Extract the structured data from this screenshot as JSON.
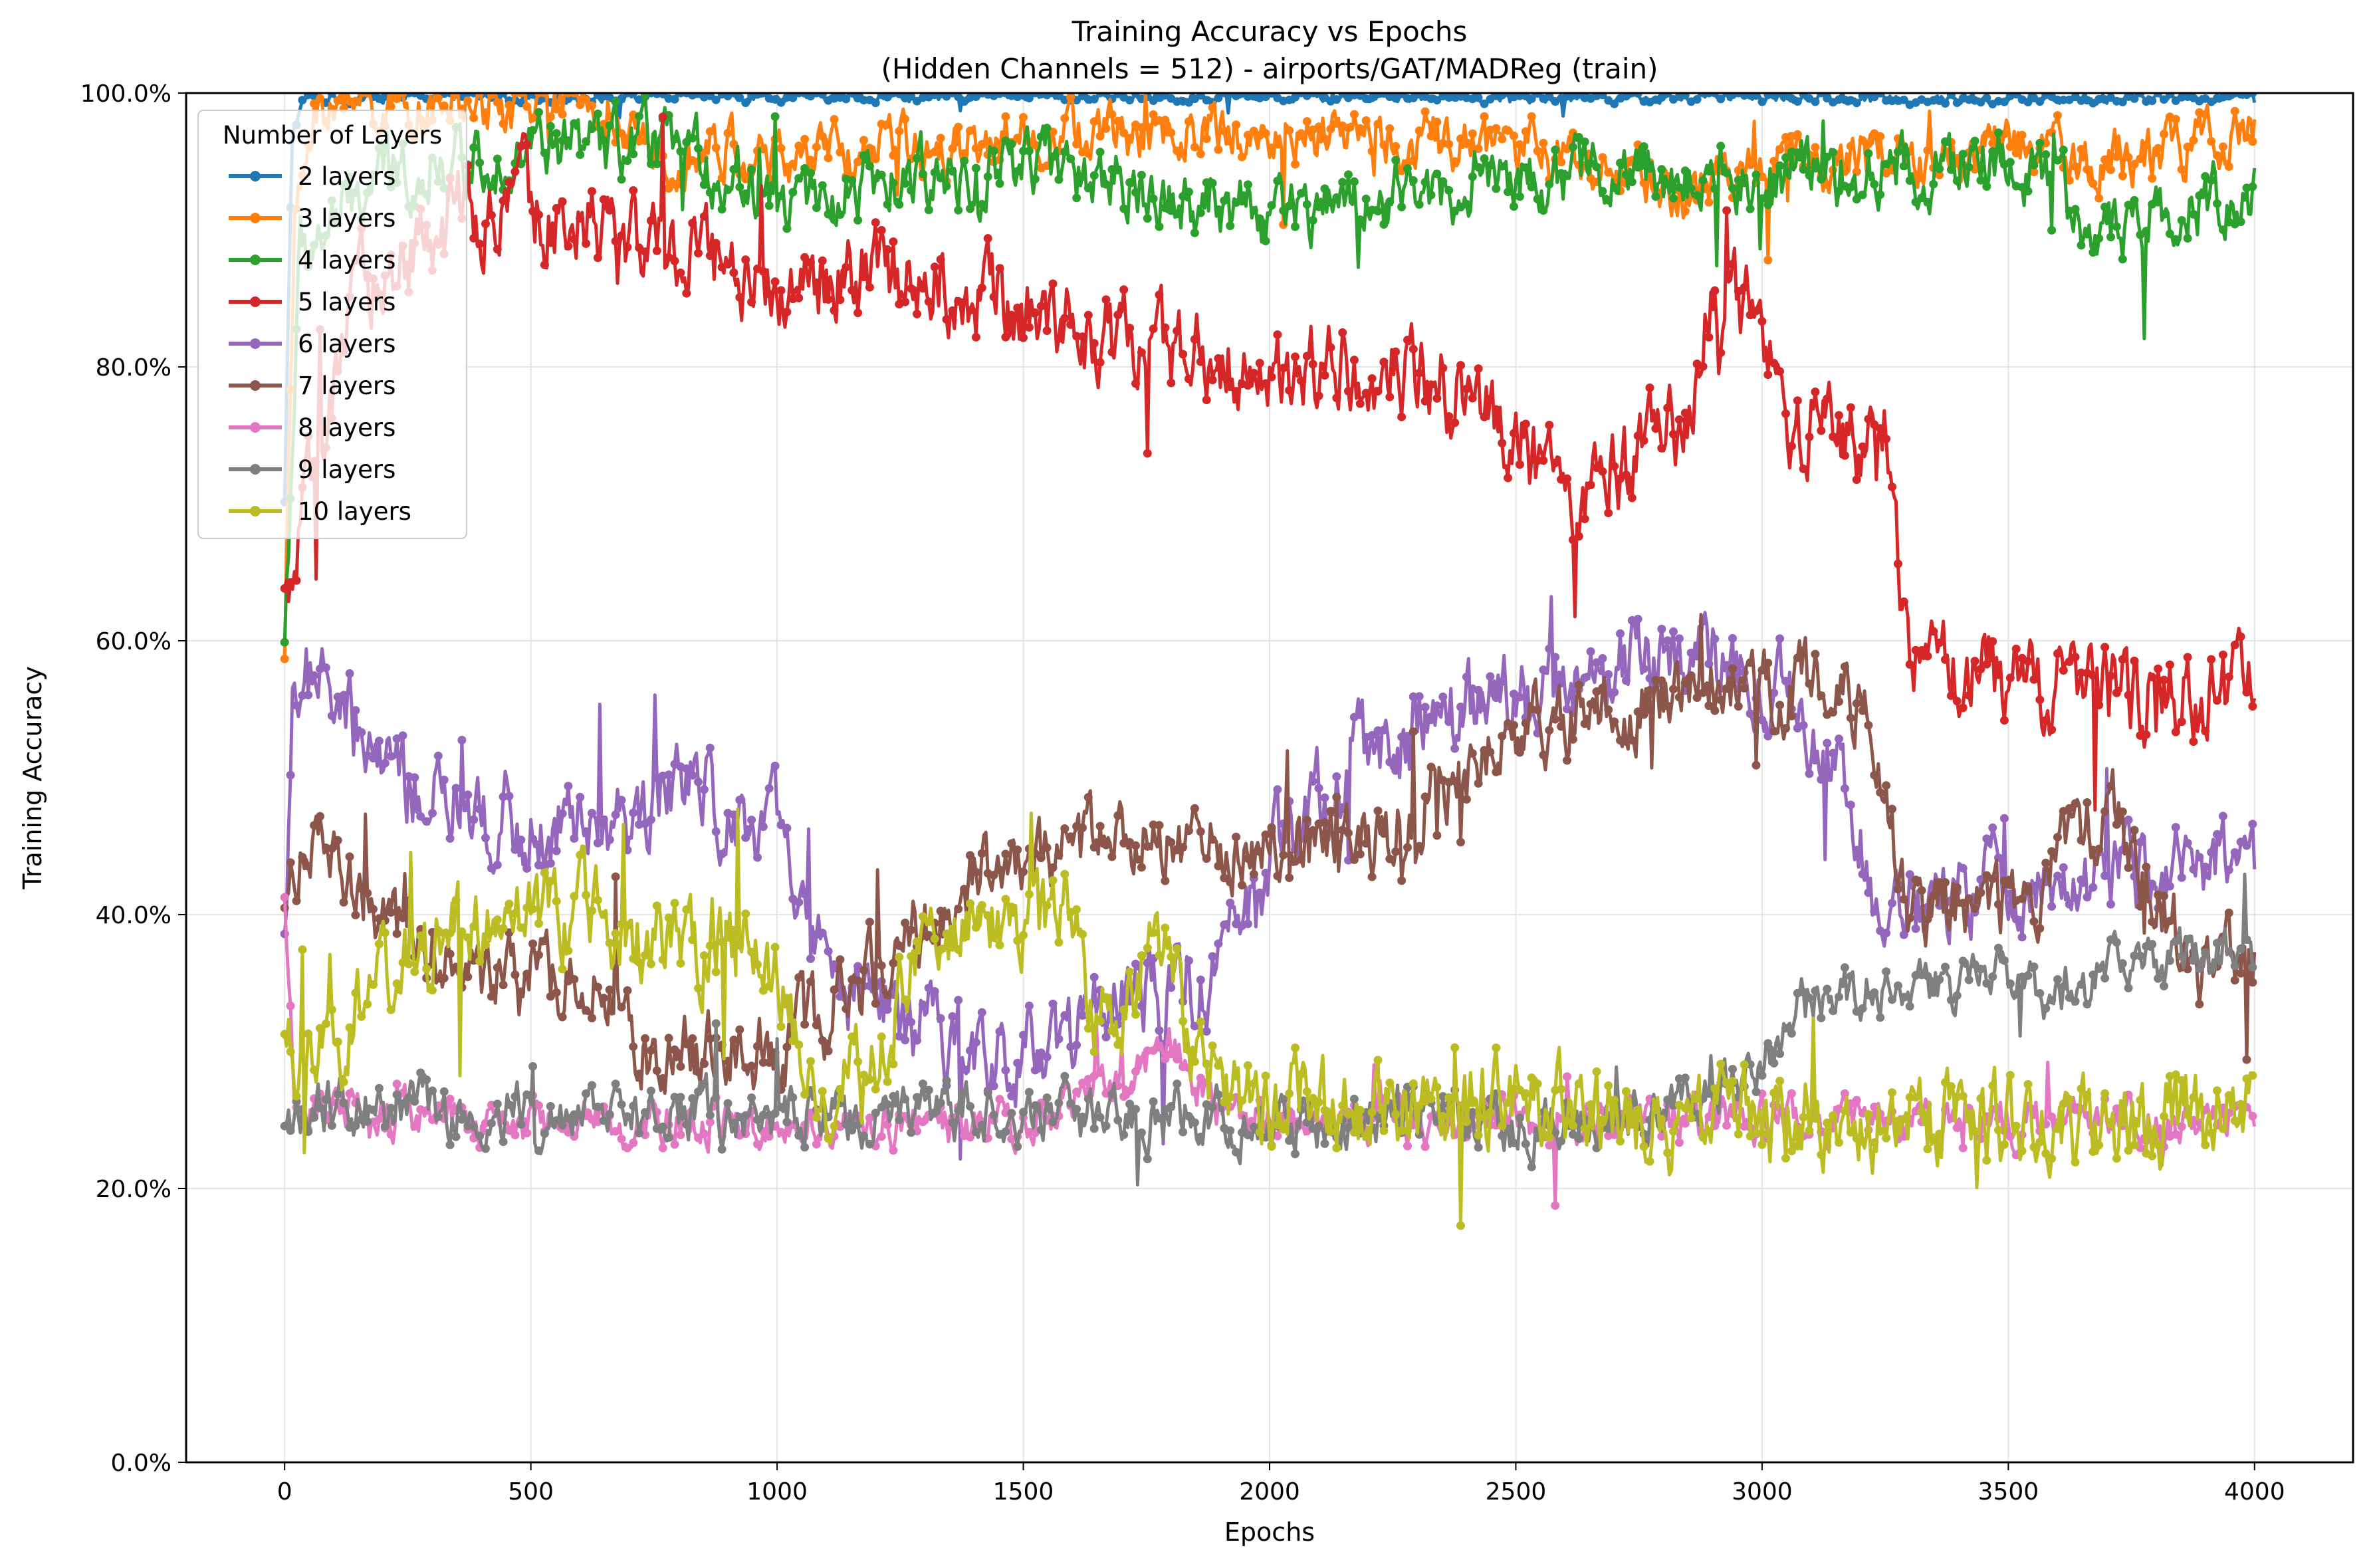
{
  "chart_data": {
    "type": "line",
    "title": "Training Accuracy vs Epochs",
    "subtitle": "(Hidden Channels = 512) - airports/GAT/MADReg (train)",
    "xlabel": "Epochs",
    "ylabel": "Training Accuracy",
    "xlim": [
      -200,
      4200
    ],
    "ylim": [
      0,
      100
    ],
    "x_ticks": [
      0,
      500,
      1000,
      1500,
      2000,
      2500,
      3000,
      3500,
      4000
    ],
    "x_tick_labels": [
      "0",
      "500",
      "1000",
      "1500",
      "2000",
      "2500",
      "3000",
      "3500",
      "4000"
    ],
    "y_ticks": [
      0,
      20,
      40,
      60,
      80,
      100
    ],
    "y_tick_labels": [
      "0.0%",
      "20.0%",
      "40.0%",
      "60.0%",
      "80.0%",
      "100.0%"
    ],
    "grid": true,
    "legend": {
      "title": "Number of Layers",
      "placement": "top-left"
    },
    "series": [
      {
        "name": "2 layers",
        "color": "#1f77b4",
        "noise": 0.5,
        "points": [
          [
            0,
            70
          ],
          [
            15,
            97
          ],
          [
            40,
            99.6
          ],
          [
            200,
            99.8
          ],
          [
            1000,
            99.7
          ],
          [
            2000,
            99.8
          ],
          [
            3000,
            99.7
          ],
          [
            3400,
            99.5
          ],
          [
            4000,
            99.7
          ]
        ]
      },
      {
        "name": "3 layers",
        "color": "#ff7f0e",
        "noise": 2.5,
        "points": [
          [
            0,
            60
          ],
          [
            20,
            90
          ],
          [
            60,
            99
          ],
          [
            400,
            99
          ],
          [
            660,
            99
          ],
          [
            700,
            96
          ],
          [
            900,
            96
          ],
          [
            1000,
            95
          ],
          [
            1500,
            97
          ],
          [
            2000,
            97
          ],
          [
            2500,
            96
          ],
          [
            2750,
            94
          ],
          [
            2850,
            92
          ],
          [
            3000,
            95
          ],
          [
            3500,
            96
          ],
          [
            3700,
            95
          ],
          [
            4000,
            97
          ]
        ]
      },
      {
        "name": "4 layers",
        "color": "#2ca02c",
        "noise": 3,
        "points": [
          [
            0,
            60
          ],
          [
            30,
            88
          ],
          [
            200,
            94
          ],
          [
            500,
            96
          ],
          [
            800,
            96
          ],
          [
            1000,
            92
          ],
          [
            1500,
            95
          ],
          [
            2000,
            91
          ],
          [
            2500,
            94
          ],
          [
            3000,
            94
          ],
          [
            3500,
            95
          ],
          [
            3700,
            90
          ],
          [
            4000,
            93
          ]
        ]
      },
      {
        "name": "5 layers",
        "color": "#d62728",
        "noise": 4,
        "points": [
          [
            0,
            62
          ],
          [
            50,
            70
          ],
          [
            150,
            85
          ],
          [
            300,
            90
          ],
          [
            500,
            92
          ],
          [
            700,
            90
          ],
          [
            900,
            87
          ],
          [
            1000,
            86
          ],
          [
            1300,
            87
          ],
          [
            1500,
            84
          ],
          [
            1700,
            82
          ],
          [
            2000,
            80
          ],
          [
            2300,
            80
          ],
          [
            2500,
            76
          ],
          [
            2600,
            69
          ],
          [
            2700,
            72
          ],
          [
            2850,
            76
          ],
          [
            2900,
            85
          ],
          [
            3000,
            83
          ],
          [
            3050,
            77
          ],
          [
            3150,
            74
          ],
          [
            3250,
            75
          ],
          [
            3300,
            58
          ],
          [
            3500,
            57
          ],
          [
            3700,
            56
          ],
          [
            4000,
            56
          ]
        ]
      },
      {
        "name": "6 layers",
        "color": "#9467bd",
        "noise": 4,
        "points": [
          [
            0,
            40
          ],
          [
            20,
            58
          ],
          [
            100,
            55
          ],
          [
            250,
            49
          ],
          [
            400,
            47
          ],
          [
            700,
            47
          ],
          [
            800,
            50
          ],
          [
            1000,
            46
          ],
          [
            1100,
            35
          ],
          [
            1300,
            32
          ],
          [
            1500,
            30
          ],
          [
            1700,
            33
          ],
          [
            1900,
            36
          ],
          [
            2000,
            45
          ],
          [
            2200,
            52
          ],
          [
            2400,
            55
          ],
          [
            2600,
            57
          ],
          [
            2800,
            59
          ],
          [
            3000,
            57
          ],
          [
            3150,
            50
          ],
          [
            3250,
            40
          ],
          [
            3400,
            42
          ],
          [
            3700,
            43
          ],
          [
            4000,
            44
          ]
        ]
      },
      {
        "name": "7 layers",
        "color": "#8c564b",
        "noise": 3.5,
        "points": [
          [
            0,
            40
          ],
          [
            30,
            45
          ],
          [
            200,
            40
          ],
          [
            400,
            35
          ],
          [
            650,
            35
          ],
          [
            700,
            30
          ],
          [
            1000,
            30
          ],
          [
            1200,
            36
          ],
          [
            1400,
            42
          ],
          [
            1500,
            45
          ],
          [
            1800,
            45
          ],
          [
            2000,
            45
          ],
          [
            2200,
            45
          ],
          [
            2500,
            53
          ],
          [
            2800,
            56
          ],
          [
            3000,
            57
          ],
          [
            3200,
            56
          ],
          [
            3300,
            40
          ],
          [
            3500,
            40
          ],
          [
            3700,
            48
          ],
          [
            3900,
            35
          ],
          [
            4000,
            38
          ]
        ]
      },
      {
        "name": "8 layers",
        "color": "#e377c2",
        "noise": 2,
        "points": [
          [
            0,
            40
          ],
          [
            20,
            26
          ],
          [
            400,
            25
          ],
          [
            1000,
            25
          ],
          [
            1500,
            24.5
          ],
          [
            1700,
            28
          ],
          [
            1800,
            30
          ],
          [
            1900,
            25
          ],
          [
            2500,
            25
          ],
          [
            3000,
            25
          ],
          [
            3500,
            25
          ],
          [
            4000,
            25
          ]
        ]
      },
      {
        "name": "9 layers",
        "color": "#7f7f7f",
        "noise": 2.5,
        "points": [
          [
            0,
            25
          ],
          [
            100,
            26
          ],
          [
            400,
            25.5
          ],
          [
            1000,
            25.5
          ],
          [
            1500,
            25.5
          ],
          [
            2000,
            25
          ],
          [
            2500,
            24.5
          ],
          [
            2800,
            25
          ],
          [
            3000,
            29
          ],
          [
            3100,
            34
          ],
          [
            3300,
            35
          ],
          [
            3600,
            35
          ],
          [
            4000,
            37
          ]
        ]
      },
      {
        "name": "10 layers",
        "color": "#bcbd22",
        "noise": 4,
        "points": [
          [
            0,
            30
          ],
          [
            100,
            30
          ],
          [
            200,
            35
          ],
          [
            400,
            39
          ],
          [
            600,
            40
          ],
          [
            800,
            38
          ],
          [
            1000,
            36
          ],
          [
            1100,
            26
          ],
          [
            1250,
            34
          ],
          [
            1400,
            41
          ],
          [
            1500,
            40
          ],
          [
            1600,
            40
          ],
          [
            1650,
            32
          ],
          [
            1800,
            38
          ],
          [
            1850,
            28
          ],
          [
            2000,
            26
          ],
          [
            2500,
            26
          ],
          [
            2800,
            25
          ],
          [
            3500,
            25
          ],
          [
            4000,
            25
          ]
        ]
      }
    ]
  }
}
